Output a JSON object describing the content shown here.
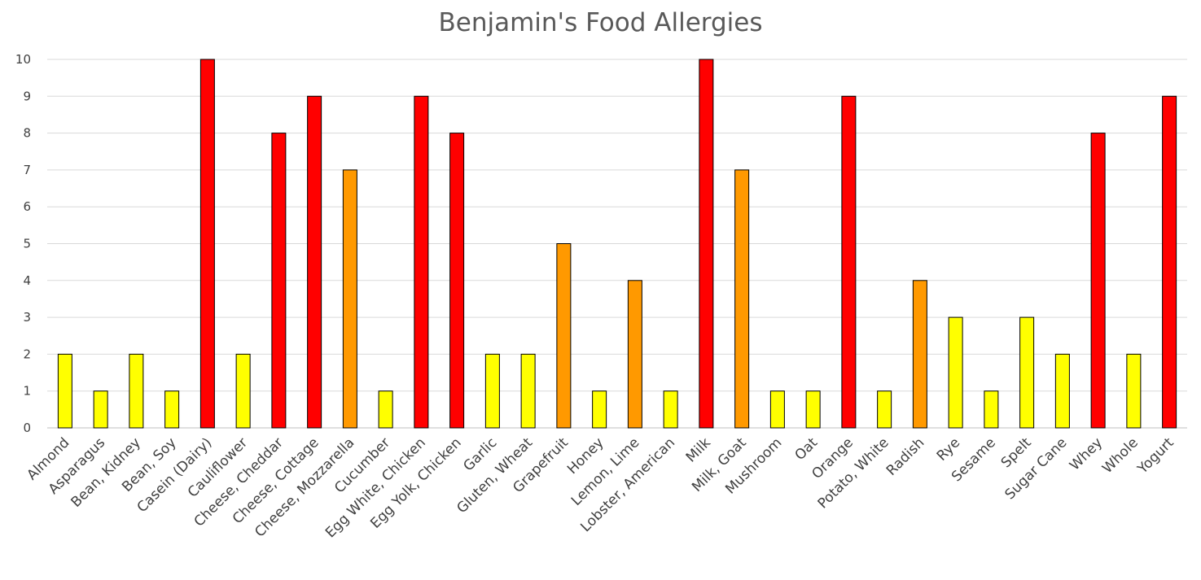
{
  "chart_data": {
    "type": "bar",
    "title": "Benjamin's Food Allergies",
    "xlabel": "",
    "ylabel": "",
    "ylim": [
      0,
      10
    ],
    "yticks": [
      "0",
      "1",
      "2",
      "3",
      "4",
      "5",
      "6",
      "7",
      "8",
      "9",
      "10"
    ],
    "grid": true,
    "legend": "none",
    "colors": {
      "low": "#FFFF00",
      "medium": "#FF9900",
      "high": "#FF0000",
      "bar_outline": "#000000",
      "grid": "#D9D9D9"
    },
    "categories": [
      "Almond",
      "Asparagus",
      "Bean, Kidney",
      "Bean, Soy",
      "Casein (Dairy)",
      "Cauliflower",
      "Cheese, Cheddar",
      "Cheese, Cottage",
      "Cheese, Mozzarella",
      "Cucumber",
      "Egg White, Chicken",
      "Egg Yolk, Chicken",
      "Garlic",
      "Gluten, Wheat",
      "Grapefruit",
      "Honey",
      "Lemon,  Lime",
      "Lobster, American",
      "Milk",
      "Milk, Goat",
      "Mushroom",
      "Oat",
      "Orange",
      "Potato, White",
      "Radish",
      "Rye",
      "Sesame",
      "Spelt",
      "Sugar Cane",
      "Whey",
      "Whole",
      "Yogurt"
    ],
    "values": [
      2,
      1,
      2,
      1,
      10,
      2,
      8,
      9,
      7,
      1,
      9,
      8,
      2,
      2,
      5,
      1,
      4,
      1,
      10,
      7,
      1,
      1,
      9,
      1,
      4,
      3,
      1,
      3,
      2,
      8,
      2,
      9
    ],
    "bar_color_levels": [
      "low",
      "low",
      "low",
      "low",
      "high",
      "low",
      "high",
      "high",
      "medium",
      "low",
      "high",
      "high",
      "low",
      "low",
      "medium",
      "low",
      "medium",
      "low",
      "high",
      "medium",
      "low",
      "low",
      "high",
      "low",
      "medium",
      "low",
      "low",
      "low",
      "low",
      "high",
      "low",
      "high"
    ]
  }
}
